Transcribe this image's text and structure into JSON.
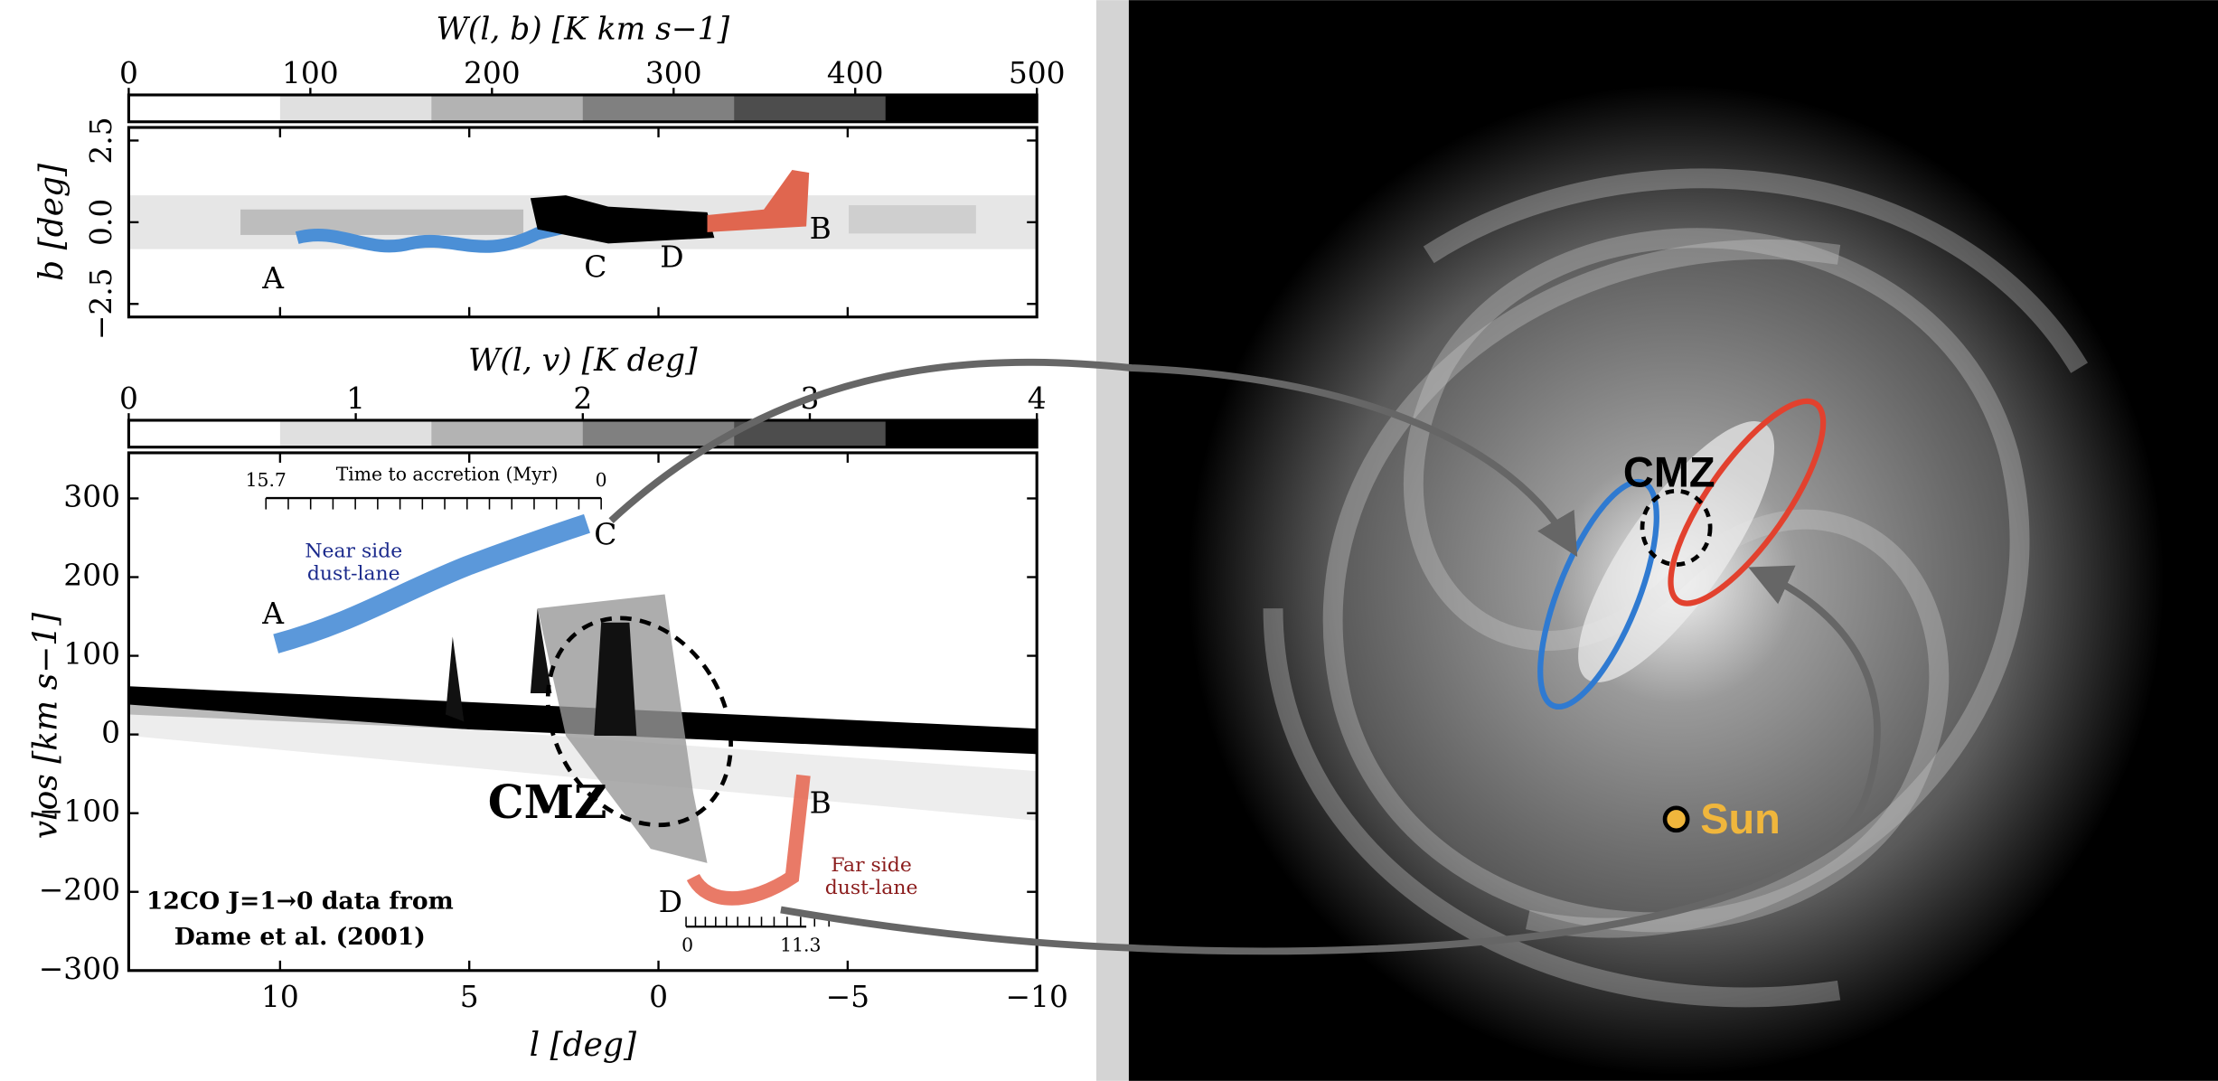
{
  "chart_data": [
    {
      "type": "heatmap",
      "ylabel": "b [deg]",
      "xlim": [
        14,
        -10
      ],
      "xticks": [
        10,
        5,
        0,
        -5,
        -10
      ],
      "ylim": [
        -2.9,
        2.9
      ],
      "yticks": [
        {
          "value": 2.5,
          "label": "2.5"
        },
        {
          "value": 0,
          "label": "0.0"
        },
        {
          "value": -2.5,
          "label": "−2.5"
        }
      ],
      "colorbar": {
        "label": "W(l, b) [K km s−1]",
        "lim": [
          0,
          500
        ],
        "ticks": [
          0,
          100,
          200,
          300,
          400,
          500
        ],
        "colors": [
          "#ffffff",
          "#e0e0e0",
          "#b3b3b3",
          "#808080",
          "#4d4d4d",
          "#000000"
        ]
      },
      "annotations": [
        "A",
        "C",
        "D",
        "B"
      ]
    },
    {
      "type": "heatmap",
      "xlabel": "l [deg]",
      "ylabel": "vlos [km s−1]",
      "xlim": [
        14,
        -10
      ],
      "xticks": [
        10,
        5,
        0,
        {
          "value": -5,
          "label": "−5"
        },
        {
          "value": -10,
          "label": "−10"
        }
      ],
      "ylim": [
        -300,
        358
      ],
      "yticks": [
        300,
        200,
        100,
        0,
        {
          "value": -100,
          "label": "−100"
        },
        {
          "value": -200,
          "label": "−200"
        },
        {
          "value": -300,
          "label": "−300"
        }
      ],
      "colorbar": {
        "label": "W(l, v) [K deg]",
        "lim": [
          0,
          4
        ],
        "ticks": [
          0,
          1,
          2,
          3,
          4
        ],
        "colors": [
          "#ffffff",
          "#e0e0e0",
          "#b3b3b3",
          "#808080",
          "#4d4d4d",
          "#000000"
        ]
      },
      "annotations": [
        "A",
        "C",
        "B",
        "D",
        "Time to accretion (Myr)",
        "15.7",
        "0",
        "Near side",
        "dust-lane",
        "CMZ",
        "12CO J=1→0 data from",
        "Dame et al. (2001)",
        "Far side",
        "dust-lane",
        "0",
        "11.3"
      ]
    }
  ],
  "galaxy": {
    "labels": [
      "CMZ",
      "Sun"
    ]
  }
}
